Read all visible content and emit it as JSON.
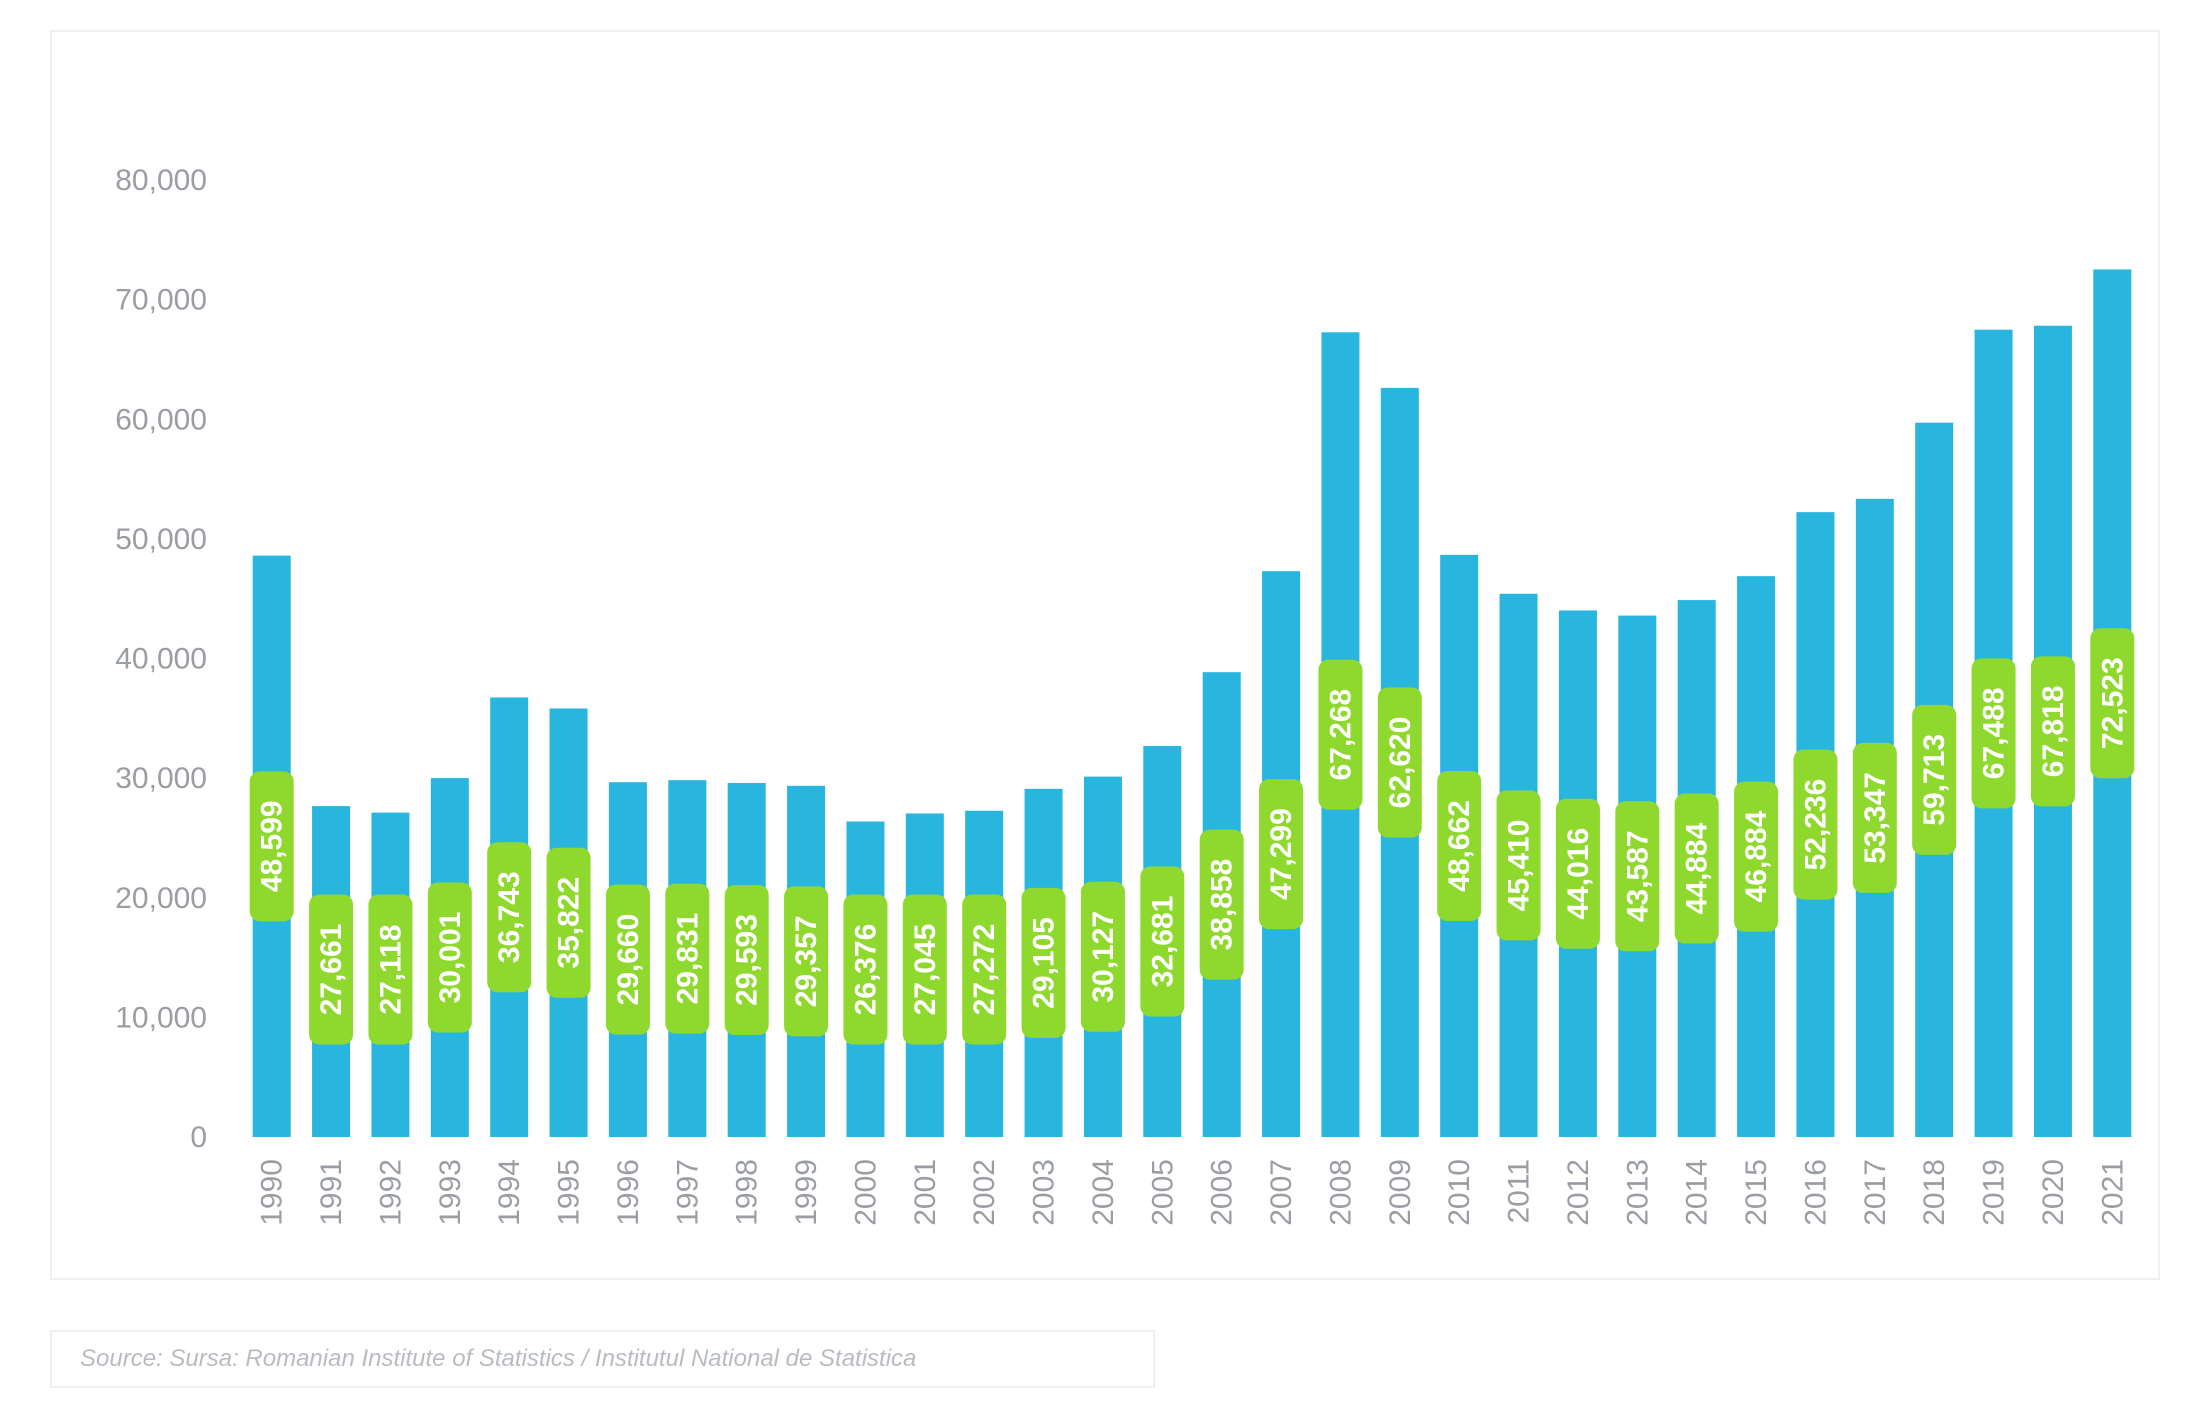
{
  "chart_data": {
    "type": "bar",
    "title": "",
    "xlabel": "",
    "ylabel": "",
    "ylim": [
      0,
      80000
    ],
    "yticks": [
      "0",
      "10,000",
      "20,000",
      "30,000",
      "40,000",
      "50,000",
      "60,000",
      "70,000",
      "80,000"
    ],
    "yticks_values": [
      0,
      10000,
      20000,
      30000,
      40000,
      50000,
      60000,
      70000,
      80000
    ],
    "categories": [
      "1990",
      "1991",
      "1992",
      "1993",
      "1994",
      "1995",
      "1996",
      "1997",
      "1998",
      "1999",
      "2000",
      "2001",
      "2002",
      "2003",
      "2004",
      "2005",
      "2006",
      "2007",
      "2008",
      "2009",
      "2010",
      "2011",
      "2012",
      "2013",
      "2014",
      "2015",
      "2016",
      "2017",
      "2018",
      "2019",
      "2020",
      "2021"
    ],
    "values": [
      48599,
      27661,
      27118,
      30001,
      36743,
      35822,
      29660,
      29831,
      29593,
      29357,
      26376,
      27045,
      27272,
      29105,
      30127,
      32681,
      38858,
      47299,
      67268,
      62620,
      48662,
      45410,
      44016,
      43587,
      44884,
      46884,
      52236,
      53347,
      59713,
      67488,
      67818,
      72523
    ],
    "data_labels": [
      "48,599",
      "27,661",
      "27,118",
      "30,001",
      "36,743",
      "35,822",
      "29,660",
      "29,831",
      "29,593",
      "29,357",
      "26,376",
      "27,045",
      "27,272",
      "29,105",
      "30,127",
      "32,681",
      "38,858",
      "47,299",
      "67,268",
      "62,620",
      "48,662",
      "45,410",
      "44,016",
      "43,587",
      "44,884",
      "46,884",
      "52,236",
      "53,347",
      "59,713",
      "67,488",
      "67,818",
      "72,523"
    ],
    "bar_color": "#29b6de",
    "label_color": "#8fd92e",
    "grid": false,
    "legend": "none"
  },
  "source_note": "Source: Sursa: Romanian Institute of Statistics / Institutul National de Statistica"
}
